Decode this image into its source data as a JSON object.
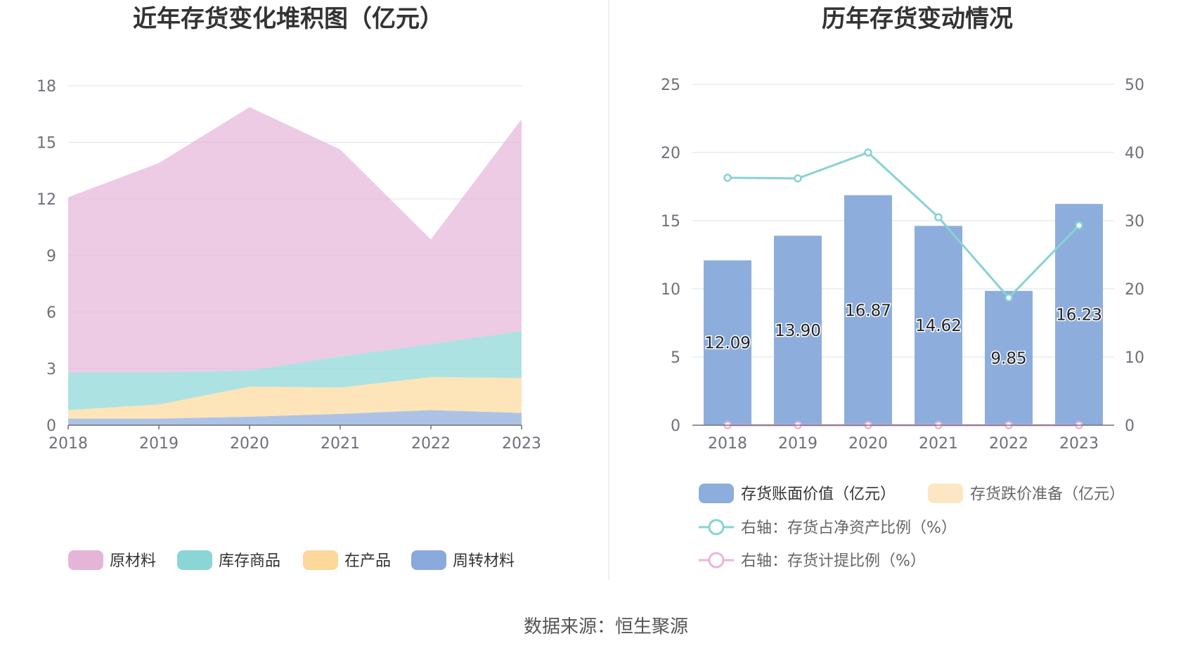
{
  "source_label": "数据来源：恒生聚源",
  "colors": {
    "raw_material": "#e5b5d8",
    "stock_goods": "#8ad6d6",
    "wip": "#fdd89b",
    "turnover": "#8aa9dc",
    "bar": "#8daedd",
    "impairment": "#fde6c4",
    "ratio_line": "#86d3d3",
    "provision_line": "#ebb5d8",
    "grid": "#e0e6f1",
    "axis": "#6e7079"
  },
  "chart_data": [
    {
      "type": "area",
      "title": "近年存货变化堆积图（亿元）",
      "x": [
        "2018",
        "2019",
        "2020",
        "2021",
        "2022",
        "2023"
      ],
      "ylim": [
        0,
        18
      ],
      "yticks": [
        "0",
        "3",
        "6",
        "9",
        "12",
        "15",
        "18"
      ],
      "stacked": true,
      "grid": true,
      "legend_position": "bottom",
      "series": [
        {
          "name": "周转材料",
          "values": [
            0.35,
            0.35,
            0.45,
            0.6,
            0.8,
            0.65
          ]
        },
        {
          "name": "在产品",
          "values": [
            0.45,
            0.75,
            1.6,
            1.4,
            1.75,
            1.85
          ]
        },
        {
          "name": "库存商品",
          "values": [
            2.0,
            1.7,
            0.85,
            1.65,
            1.75,
            2.5
          ]
        },
        {
          "name": "原材料",
          "values": [
            9.29,
            11.1,
            13.97,
            10.97,
            5.55,
            11.23
          ]
        }
      ],
      "legend": [
        "原材料",
        "库存商品",
        "在产品",
        "周转材料"
      ]
    },
    {
      "type": "bar",
      "title": "历年存货变动情况",
      "x": [
        "2018",
        "2019",
        "2020",
        "2021",
        "2022",
        "2023"
      ],
      "ylim_left": [
        0,
        25
      ],
      "ylim_right": [
        0,
        50
      ],
      "yticks_left": [
        "0",
        "5",
        "10",
        "15",
        "20",
        "25"
      ],
      "yticks_right": [
        "0",
        "10",
        "20",
        "30",
        "40",
        "50"
      ],
      "grid": true,
      "legend_position": "bottom",
      "series": [
        {
          "name": "存货账面价值（亿元）",
          "axis": "left",
          "kind": "bar",
          "values": [
            12.09,
            13.9,
            16.87,
            14.62,
            9.85,
            16.23
          ],
          "labels": [
            "12.09",
            "13.90",
            "16.87",
            "14.62",
            "9.85",
            "16.23"
          ]
        },
        {
          "name": "存货跌价准备（亿元）",
          "axis": "left",
          "kind": "bar",
          "values": [
            0,
            0,
            0,
            0,
            0,
            0
          ]
        },
        {
          "name": "右轴：存货占净资产比例（%）",
          "axis": "right",
          "kind": "line",
          "values": [
            36.3,
            36.2,
            40.0,
            30.5,
            18.7,
            29.3
          ]
        },
        {
          "name": "右轴：存货计提比例（%）",
          "axis": "right",
          "kind": "line",
          "values": [
            0,
            0,
            0,
            0,
            0,
            0
          ]
        }
      ]
    }
  ]
}
